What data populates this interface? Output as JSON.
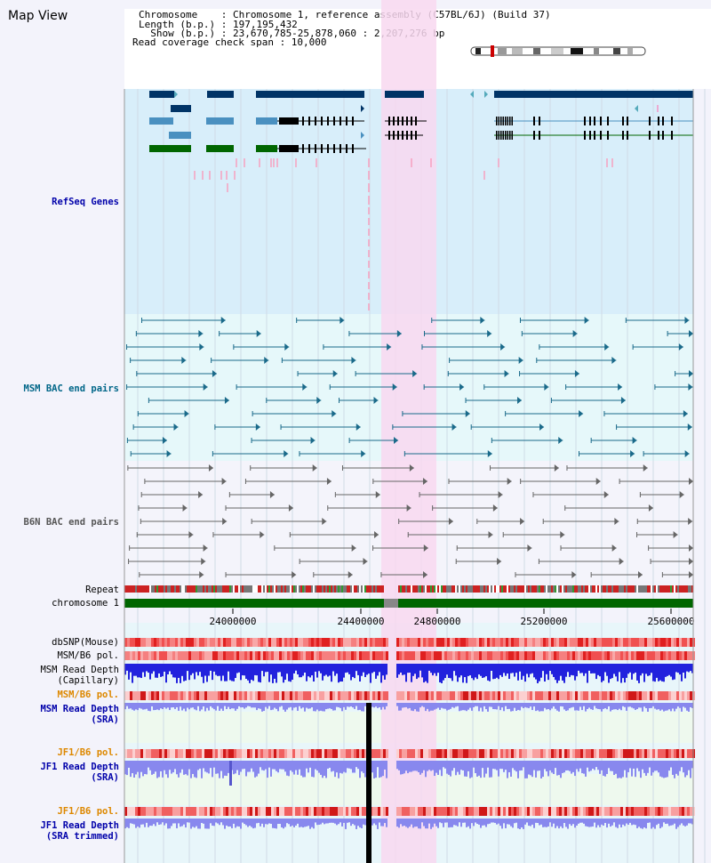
{
  "title": "Map View",
  "header": {
    "chromosome": "Chromosome    : Chromosome 1, reference assembly (C57BL/6J) (Build 37)",
    "length": "Length (b.p.) : 197,195,432",
    "show": "  Show (b.p.) : 23,670,785-25,878,060 : 2,207,276 bp",
    "coverage": "Read coverage check span : 10,000"
  },
  "tracks": {
    "refseq": "RefSeq Genes",
    "msm_bac": "MSM BAC end pairs",
    "b6n_bac": "B6N BAC end pairs",
    "repeat": "Repeat",
    "chromosome": "chromosome 1",
    "dbsnp": "dbSNP(Mouse)",
    "msm_pol1": "MSM/B6 pol.",
    "msm_cap": "MSM Read Depth\n(Capillary)",
    "msm_pol2": "MSM/B6 pol.",
    "msm_sra": "MSM Read Depth\n(SRA)",
    "jf1_pol1": "JF1/B6 pol.",
    "jf1_sra": "JF1 Read Depth\n(SRA)",
    "jf1_pol2": "JF1/B6 pol.",
    "jf1_trim": "JF1 Read Depth\n(SRA trimmed)"
  },
  "axis": {
    "ticks": [
      "24000000",
      "24400000",
      "24800000",
      "25200000",
      "25600000"
    ]
  },
  "colors": {
    "highlight": "#f8d8f0",
    "refseq_bg": "#d8eefa",
    "gene_dark": "#003366",
    "gene_mid": "#4a90c0",
    "gene_green": "#006600",
    "chrom": "#006600"
  }
}
